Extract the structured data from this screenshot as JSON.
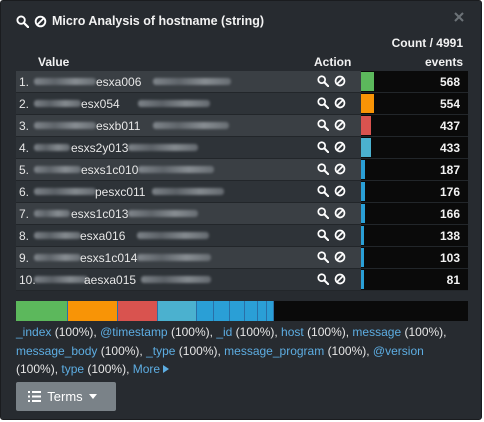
{
  "panel": {
    "title": "Micro Analysis of hostname (string)",
    "count_label": "Count / 4991"
  },
  "columns": {
    "value": "Value",
    "action": "Action",
    "events": "events"
  },
  "rows": [
    {
      "index": "1.",
      "value": "esxa006",
      "events": "568",
      "fraction": 1.0,
      "color": "#5cb85c"
    },
    {
      "index": "2.",
      "value": "esx054",
      "events": "554",
      "fraction": 0.975,
      "color": "#f89406"
    },
    {
      "index": "3.",
      "value": "esxb011",
      "events": "437",
      "fraction": 0.769,
      "color": "#d9534f"
    },
    {
      "index": "4.",
      "value": "esxs2y013",
      "events": "433",
      "fraction": 0.762,
      "color": "#4bb1cf"
    },
    {
      "index": "5.",
      "value": "esxs1c010",
      "events": "187",
      "fraction": 0.329,
      "color": "#2a9fd6"
    },
    {
      "index": "6.",
      "value": "pesxc011",
      "events": "176",
      "fraction": 0.31,
      "color": "#2a9fd6"
    },
    {
      "index": "7.",
      "value": "esxs1c013",
      "events": "166",
      "fraction": 0.292,
      "color": "#2a9fd6"
    },
    {
      "index": "8.",
      "value": "esxa016",
      "events": "138",
      "fraction": 0.243,
      "color": "#2a9fd6"
    },
    {
      "index": "9.",
      "value": "esxs1c014",
      "events": "103",
      "fraction": 0.181,
      "color": "#2a9fd6"
    },
    {
      "index": "10.",
      "value": "aesxa015",
      "events": "81",
      "fraction": 0.143,
      "color": "#2a9fd6"
    }
  ],
  "stack_segments": [
    {
      "fraction": 0.114,
      "color": "#5cb85c"
    },
    {
      "fraction": 0.111,
      "color": "#f89406"
    },
    {
      "fraction": 0.088,
      "color": "#d9534f"
    },
    {
      "fraction": 0.087,
      "color": "#4bb1cf"
    },
    {
      "fraction": 0.037,
      "color": "#2a9fd6"
    },
    {
      "fraction": 0.035,
      "color": "#2a9fd6"
    },
    {
      "fraction": 0.033,
      "color": "#2a9fd6"
    },
    {
      "fraction": 0.028,
      "color": "#2a9fd6"
    },
    {
      "fraction": 0.021,
      "color": "#2a9fd6"
    },
    {
      "fraction": 0.016,
      "color": "#2a9fd6"
    }
  ],
  "fields": [
    {
      "name": "_index",
      "pct": "(100%)"
    },
    {
      "name": "@timestamp",
      "pct": "(100%)"
    },
    {
      "name": "_id",
      "pct": "(100%)"
    },
    {
      "name": "host",
      "pct": "(100%)"
    },
    {
      "name": "message",
      "pct": "(100%)"
    },
    {
      "name": "message_body",
      "pct": "(100%)"
    },
    {
      "name": "_type",
      "pct": "(100%)"
    },
    {
      "name": "message_program",
      "pct": "(100%)"
    },
    {
      "name": "@version",
      "pct": "(100%)"
    },
    {
      "name": "type",
      "pct": "(100%)"
    }
  ],
  "more_label": "More",
  "terms_button": "Terms",
  "icons": {
    "title": [
      "search-icon",
      "ban-icon"
    ],
    "close": "close-icon",
    "row_actions": [
      "search-icon",
      "ban-icon"
    ],
    "terms": "list-icon",
    "caret": "caret-down-icon"
  }
}
